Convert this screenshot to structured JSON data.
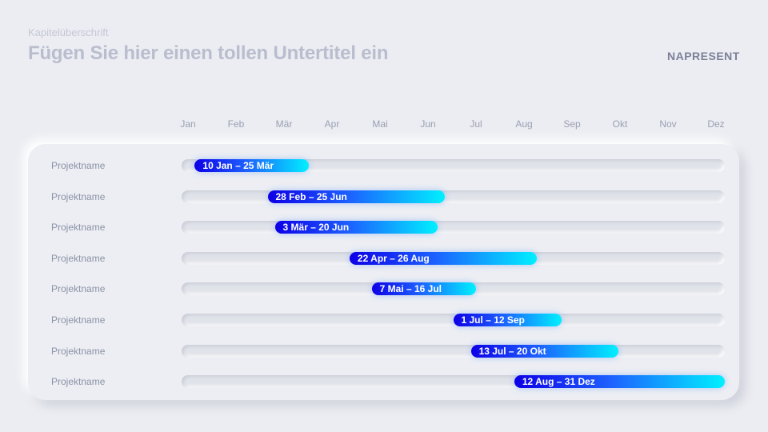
{
  "header": {
    "kicker": "Kapitelüberschrift",
    "subtitle": "Fügen Sie hier einen tollen Untertitel ein",
    "brand": "NAPRESENT"
  },
  "timeline": {
    "months": [
      "Jan",
      "Feb",
      "Mär",
      "Apr",
      "Mai",
      "Jun",
      "Jul",
      "Aug",
      "Sep",
      "Okt",
      "Nov",
      "Dez"
    ],
    "rows": [
      {
        "name": "Projektname",
        "range": "10 Jan – 25  Mär",
        "start": 0.29,
        "end": 2.81
      },
      {
        "name": "Projektname",
        "range": "28 Feb – 25  Jun",
        "start": 1.9,
        "end": 5.81
      },
      {
        "name": "Projektname",
        "range": "3 Mär – 20  Jun",
        "start": 2.06,
        "end": 5.65
      },
      {
        "name": "Projektname",
        "range": "22 Apr – 26  Aug",
        "start": 3.71,
        "end": 7.84
      },
      {
        "name": "Projektname",
        "range": "7 Mai – 16  Jul",
        "start": 4.2,
        "end": 6.5
      },
      {
        "name": "Projektname",
        "range": "1 Jul – 12  Sep",
        "start": 6.0,
        "end": 8.39
      },
      {
        "name": "Projektname",
        "range": "13 Jul – 20  Okt",
        "start": 6.39,
        "end": 9.65
      },
      {
        "name": "Projektname",
        "range": "12 Aug – 31  Dez",
        "start": 7.35,
        "end": 12.0
      }
    ]
  },
  "colors": {
    "bar_start": "#0d00e6",
    "bar_mid": "#1d5fff",
    "bar_end": "#00f0ff",
    "track": "#e1e3ea",
    "background": "#ecedf2"
  }
}
